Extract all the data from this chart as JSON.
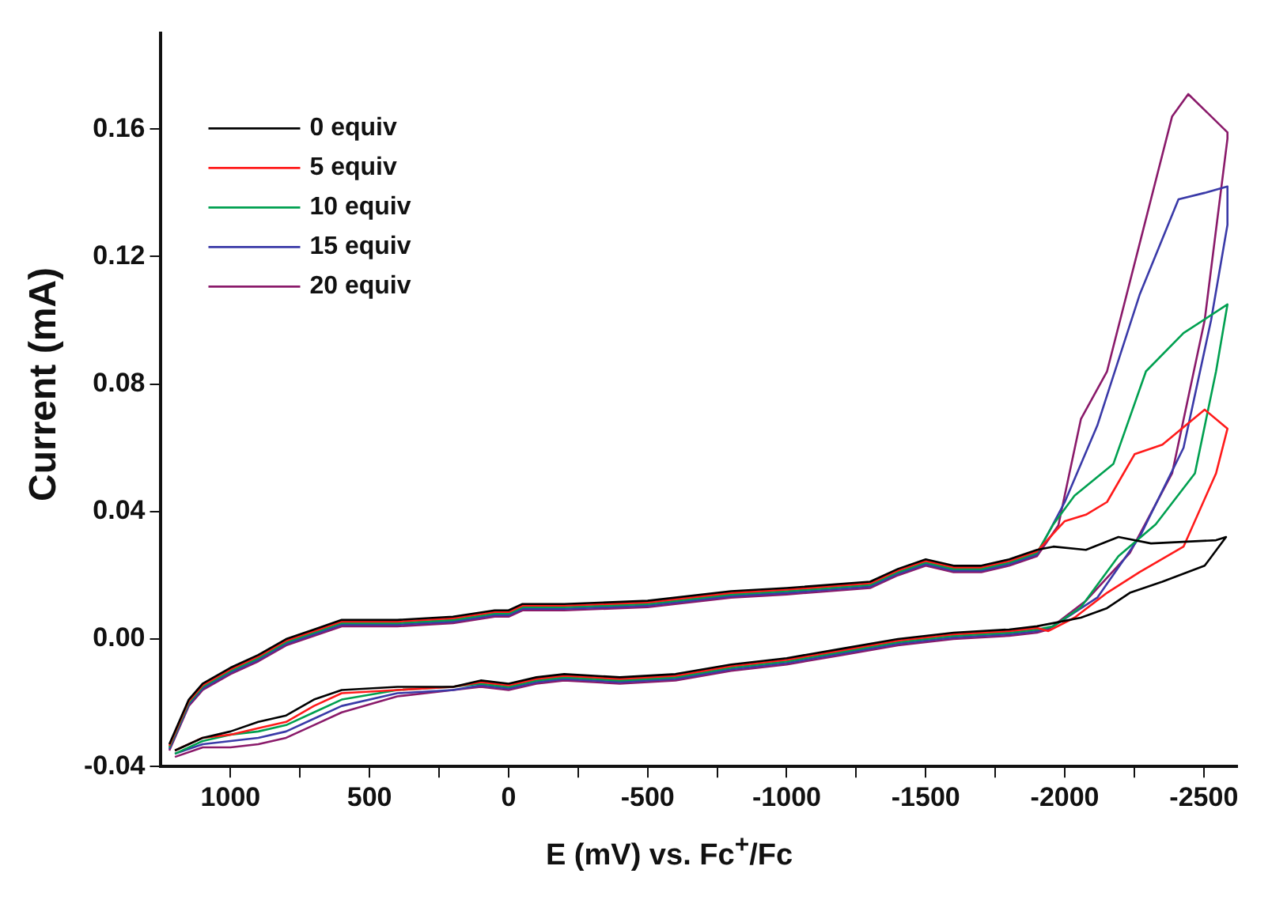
{
  "chart_data": {
    "type": "line",
    "xlabel": "E (mV) vs. Fc$^{+}$/Fc",
    "ylabel": "Current (mA)",
    "xlim": [
      1250,
      -2620
    ],
    "ylim": [
      -0.04,
      0.19
    ],
    "xticks": [
      {
        "value": 1000,
        "label": "1000"
      },
      {
        "value": 750,
        "label": null
      },
      {
        "value": 500,
        "label": "500"
      },
      {
        "value": 250,
        "label": null
      },
      {
        "value": 0,
        "label": "0"
      },
      {
        "value": -250,
        "label": null
      },
      {
        "value": -500,
        "label": "-500"
      },
      {
        "value": -750,
        "label": null
      },
      {
        "value": -1000,
        "label": "-1000"
      },
      {
        "value": -1250,
        "label": null
      },
      {
        "value": -1500,
        "label": "-1500"
      },
      {
        "value": -1750,
        "label": null
      },
      {
        "value": -2000,
        "label": "-2000"
      },
      {
        "value": -2250,
        "label": null
      },
      {
        "value": -2500,
        "label": "-2500"
      }
    ],
    "yticks": [
      -0.04,
      {
        "value": 0,
        "label": "0.00"
      },
      0.04,
      0.08,
      0.12,
      0.16
    ],
    "legend": "top left",
    "grid": false,
    "marker": "none",
    "line_style": "solid",
    "series": [
      {
        "name": "0 equiv",
        "color": "#000000",
        "x": [
          1220,
          1150,
          1100,
          1000,
          900,
          800,
          700,
          600,
          400,
          200,
          50,
          0,
          -50,
          -200,
          -500,
          -800,
          -1000,
          -1300,
          -1400,
          -1500,
          -1600,
          -1700,
          -1800,
          -1900,
          -1959,
          -2076,
          -2193,
          -2310,
          -2544,
          -2580,
          -2503,
          -2351,
          -2234,
          -2152,
          -2058,
          -1959,
          -1900,
          -1800,
          -1600,
          -1400,
          -1200,
          -1000,
          -800,
          -600,
          -400,
          -200,
          -100,
          0,
          100,
          200,
          400,
          600,
          700,
          800,
          900,
          1000,
          1100,
          1200
        ],
        "values": [
          -0.033,
          -0.019,
          -0.014,
          -0.009,
          -0.005,
          0.0,
          0.003,
          0.006,
          0.006,
          0.007,
          0.009,
          0.009,
          0.011,
          0.011,
          0.012,
          0.015,
          0.016,
          0.018,
          0.022,
          0.025,
          0.023,
          0.023,
          0.025,
          0.028,
          0.029,
          0.028,
          0.032,
          0.03,
          0.031,
          0.032,
          0.023,
          0.018,
          0.0145,
          0.0097,
          0.0067,
          0.005,
          0.004,
          0.003,
          0.002,
          0.0,
          -0.003,
          -0.006,
          -0.008,
          -0.011,
          -0.012,
          -0.011,
          -0.012,
          -0.014,
          -0.013,
          -0.015,
          -0.015,
          -0.016,
          -0.019,
          -0.024,
          -0.026,
          -0.029,
          -0.031,
          -0.035
        ]
      },
      {
        "name": "5 equiv",
        "color": "#ff1a1a",
        "x": [
          1220,
          1150,
          1100,
          1000,
          900,
          800,
          700,
          600,
          400,
          200,
          50,
          0,
          -50,
          -200,
          -500,
          -800,
          -1000,
          -1300,
          -1400,
          -1500,
          -1600,
          -1700,
          -1800,
          -1900,
          -2000,
          -2076,
          -2152,
          -2251,
          -2351,
          -2503,
          -2585,
          -2544,
          -2427,
          -2269,
          -2152,
          -2035,
          -1941,
          -1900,
          -1800,
          -1600,
          -1400,
          -1200,
          -1000,
          -800,
          -600,
          -400,
          -200,
          -100,
          0,
          100,
          200,
          400,
          600,
          700,
          800,
          900,
          1000,
          1100,
          1200
        ],
        "values": [
          -0.0335,
          -0.0195,
          -0.0145,
          -0.0095,
          -0.0055,
          -0.0005,
          0.0025,
          0.0055,
          0.0055,
          0.0065,
          0.0085,
          0.0085,
          0.0105,
          0.0105,
          0.0115,
          0.0145,
          0.0155,
          0.0175,
          0.0215,
          0.0245,
          0.0225,
          0.0225,
          0.0245,
          0.0275,
          0.037,
          0.039,
          0.043,
          0.058,
          0.061,
          0.072,
          0.066,
          0.052,
          0.029,
          0.021,
          0.0145,
          0.0067,
          0.0025,
          0.0035,
          0.0025,
          0.0015,
          -0.0005,
          -0.0035,
          -0.0065,
          -0.0085,
          -0.0115,
          -0.0125,
          -0.0115,
          -0.0125,
          -0.0145,
          -0.0135,
          -0.015,
          -0.016,
          -0.017,
          -0.021,
          -0.026,
          -0.028,
          -0.03,
          -0.031,
          -0.035
        ]
      },
      {
        "name": "10 equiv",
        "color": "#00a050",
        "x": [
          1220,
          1150,
          1100,
          1000,
          900,
          800,
          700,
          600,
          400,
          200,
          50,
          0,
          -50,
          -200,
          -500,
          -800,
          -1000,
          -1300,
          -1400,
          -1500,
          -1600,
          -1700,
          -1800,
          -1900,
          -1959,
          -2035,
          -2175,
          -2292,
          -2427,
          -2585,
          -2544,
          -2468,
          -2327,
          -2193,
          -2058,
          -1959,
          -1900,
          -1800,
          -1600,
          -1400,
          -1200,
          -1000,
          -800,
          -600,
          -400,
          -200,
          -100,
          0,
          100,
          200,
          400,
          600,
          700,
          800,
          900,
          1000,
          1100,
          1200
        ],
        "values": [
          -0.034,
          -0.02,
          -0.015,
          -0.01,
          -0.006,
          -0.001,
          0.002,
          0.005,
          0.005,
          0.006,
          0.008,
          0.008,
          0.01,
          0.01,
          0.011,
          0.014,
          0.015,
          0.017,
          0.021,
          0.024,
          0.022,
          0.022,
          0.024,
          0.027,
          0.036,
          0.045,
          0.055,
          0.084,
          0.096,
          0.105,
          0.084,
          0.052,
          0.036,
          0.026,
          0.01,
          0.004,
          0.003,
          0.002,
          0.001,
          -0.001,
          -0.004,
          -0.007,
          -0.009,
          -0.012,
          -0.013,
          -0.012,
          -0.013,
          -0.015,
          -0.014,
          -0.015,
          -0.016,
          -0.019,
          -0.023,
          -0.027,
          -0.029,
          -0.03,
          -0.032,
          -0.036
        ]
      },
      {
        "name": "15 equiv",
        "color": "#3a3aa8",
        "x": [
          1220,
          1150,
          1100,
          1000,
          900,
          800,
          700,
          600,
          400,
          200,
          50,
          0,
          -50,
          -200,
          -500,
          -800,
          -1000,
          -1300,
          -1400,
          -1500,
          -1600,
          -1700,
          -1800,
          -1900,
          -2000,
          -2117,
          -2269,
          -2409,
          -2503,
          -2585,
          -2585,
          -2526,
          -2427,
          -2269,
          -2117,
          -1959,
          -1900,
          -1800,
          -1600,
          -1400,
          -1200,
          -1000,
          -800,
          -600,
          -400,
          -200,
          -100,
          0,
          100,
          200,
          400,
          600,
          700,
          800,
          900,
          1000,
          1100,
          1200
        ],
        "values": [
          -0.0345,
          -0.0205,
          -0.0155,
          -0.0105,
          -0.0065,
          -0.0015,
          0.0015,
          0.0045,
          0.0045,
          0.0055,
          0.0075,
          0.0075,
          0.0095,
          0.0095,
          0.0105,
          0.0135,
          0.0145,
          0.0165,
          0.0205,
          0.0235,
          0.0215,
          0.0215,
          0.0235,
          0.0265,
          0.043,
          0.067,
          0.108,
          0.138,
          0.14,
          0.142,
          0.13,
          0.1,
          0.06,
          0.032,
          0.013,
          0.004,
          0.0025,
          0.0015,
          0.0005,
          -0.0015,
          -0.0045,
          -0.0075,
          -0.0095,
          -0.0125,
          -0.0135,
          -0.0125,
          -0.0135,
          -0.0155,
          -0.0145,
          -0.016,
          -0.017,
          -0.021,
          -0.025,
          -0.029,
          -0.031,
          -0.032,
          -0.033,
          -0.036
        ]
      },
      {
        "name": "20 equiv",
        "color": "#8a1a6a",
        "x": [
          1220,
          1150,
          1100,
          1000,
          900,
          800,
          700,
          600,
          400,
          200,
          50,
          0,
          -50,
          -200,
          -500,
          -800,
          -1000,
          -1300,
          -1400,
          -1500,
          -1600,
          -1700,
          -1800,
          -1900,
          -1977,
          -2058,
          -2152,
          -2269,
          -2386,
          -2444,
          -2585,
          -2585,
          -2503,
          -2386,
          -2234,
          -2076,
          -1941,
          -1900,
          -1800,
          -1600,
          -1400,
          -1200,
          -1000,
          -800,
          -600,
          -400,
          -200,
          -100,
          0,
          100,
          200,
          400,
          600,
          700,
          800,
          900,
          1000,
          1100,
          1200
        ],
        "values": [
          -0.035,
          -0.021,
          -0.016,
          -0.011,
          -0.007,
          -0.002,
          0.001,
          0.004,
          0.004,
          0.005,
          0.007,
          0.007,
          0.009,
          0.009,
          0.01,
          0.013,
          0.014,
          0.016,
          0.02,
          0.023,
          0.021,
          0.021,
          0.023,
          0.026,
          0.0357,
          0.069,
          0.084,
          0.124,
          0.164,
          0.171,
          0.159,
          0.157,
          0.1,
          0.052,
          0.027,
          0.012,
          0.003,
          0.002,
          0.001,
          0.0,
          -0.002,
          -0.005,
          -0.008,
          -0.01,
          -0.013,
          -0.014,
          -0.013,
          -0.014,
          -0.016,
          -0.015,
          -0.016,
          -0.018,
          -0.023,
          -0.027,
          -0.031,
          -0.033,
          -0.034,
          -0.034,
          -0.037
        ]
      }
    ]
  }
}
